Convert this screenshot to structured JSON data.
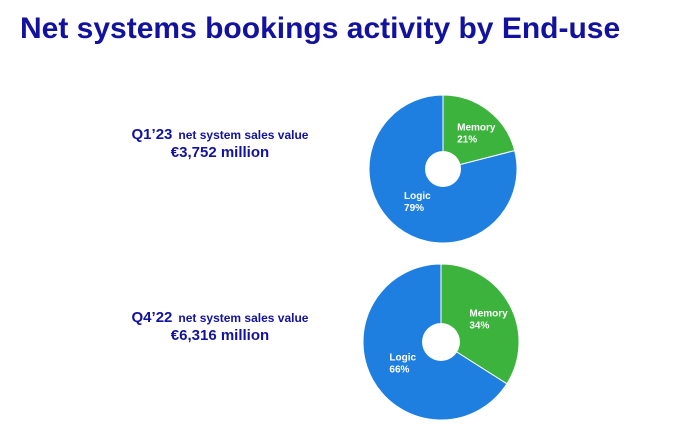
{
  "slide": {
    "title": "Net systems bookings activity by End-use"
  },
  "chart_data": [
    {
      "type": "pie",
      "period": "Q1’23",
      "subtitle": "net system sales value",
      "total": "€3,752 million",
      "slices": [
        {
          "label": "Memory",
          "value": 21,
          "display": "21%",
          "color": "#3cb33c"
        },
        {
          "label": "Logic",
          "value": 79,
          "display": "79%",
          "color": "#1f7fe0"
        }
      ]
    },
    {
      "type": "pie",
      "period": "Q4’22",
      "subtitle": "net system sales value",
      "total": "€6,316 million",
      "slices": [
        {
          "label": "Memory",
          "value": 34,
          "display": "34%",
          "color": "#3cb33c"
        },
        {
          "label": "Logic",
          "value": 66,
          "display": "66%",
          "color": "#1f7fe0"
        }
      ]
    }
  ]
}
